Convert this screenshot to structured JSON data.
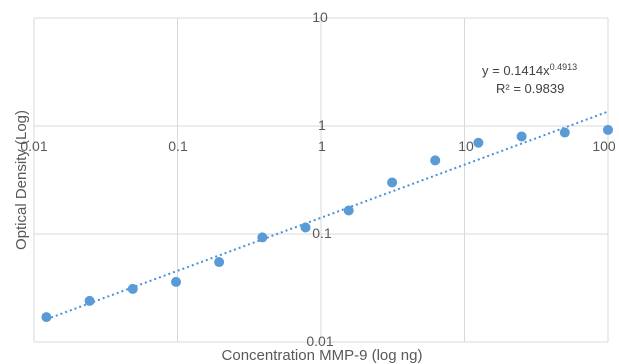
{
  "chart_data": {
    "type": "scatter",
    "title": "",
    "xlabel": "Concentration MMP-9 (log ng)",
    "ylabel": "Optical  Density (Log)",
    "x_scale": "log",
    "y_scale": "log",
    "xlim": [
      0.01,
      100
    ],
    "ylim": [
      0.01,
      10
    ],
    "x_ticks": [
      "0.01",
      "0.1",
      "1",
      "10",
      "100"
    ],
    "y_ticks": [
      "0.01",
      "0.1",
      "1",
      "10"
    ],
    "grid": true,
    "legend": "none",
    "point_color": "#5b9bd5",
    "trendline_color": "#4a90d9",
    "series": [
      {
        "x": [
          0.0122,
          0.0244,
          0.0488,
          0.0977,
          0.195,
          0.39,
          0.78,
          1.56,
          3.13,
          6.25,
          12.5,
          25,
          50,
          100
        ],
        "y": [
          0.017,
          0.024,
          0.031,
          0.036,
          0.055,
          0.093,
          0.115,
          0.165,
          0.3,
          0.48,
          0.7,
          0.8,
          0.87,
          0.92
        ]
      }
    ],
    "trendline": {
      "type": "power",
      "coefficient": 0.1414,
      "exponent": 0.4913,
      "equation_prefix": "y = 0.1414x",
      "equation_exponent": "0.4913",
      "r_squared_label": "R² = 0.9839"
    }
  }
}
